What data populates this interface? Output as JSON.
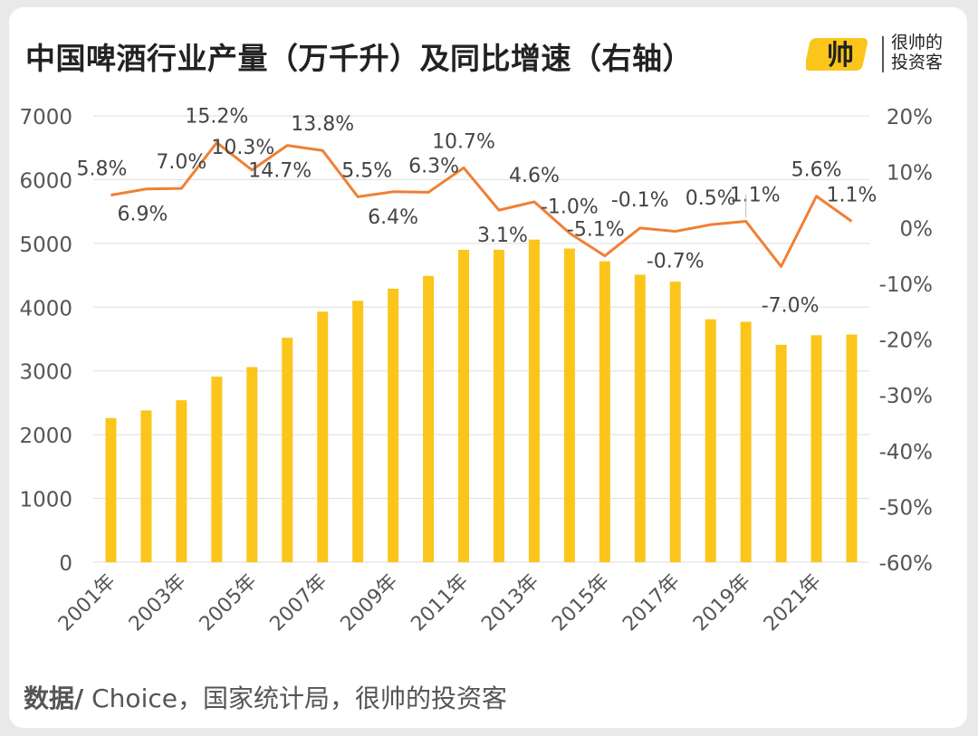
{
  "title": "中国啤酒行业产量（万千升）及同比增速（右轴）",
  "logo": {
    "mark": "帅",
    "line1": "很帅的",
    "line2": "投资客"
  },
  "source": {
    "label": "数据/",
    "text": " Choice，国家统计局，很帅的投资客"
  },
  "colors": {
    "bar": "#FBC51B",
    "line": "#EF8034",
    "grid": "#DDDDDD",
    "text": "#555555",
    "label": "#444444"
  },
  "chart_data": {
    "type": "bar+line",
    "title": "中国啤酒行业产量（万千升）及同比增速（右轴）",
    "categories": [
      "2001年",
      "2002年",
      "2003年",
      "2004年",
      "2005年",
      "2006年",
      "2007年",
      "2008年",
      "2009年",
      "2010年",
      "2011年",
      "2012年",
      "2013年",
      "2014年",
      "2015年",
      "2016年",
      "2017年",
      "2018年",
      "2019年",
      "2020年",
      "2021年",
      "2022年"
    ],
    "x_tick_labels": [
      "2001年",
      "",
      "2003年",
      "",
      "2005年",
      "",
      "2007年",
      "",
      "2009年",
      "",
      "2011年",
      "",
      "2013年",
      "",
      "2015年",
      "",
      "2017年",
      "",
      "2019年",
      "",
      "2021年",
      ""
    ],
    "series": [
      {
        "name": "产量（万千升）",
        "type": "bar",
        "axis": "left",
        "values": [
          2260,
          2380,
          2540,
          2910,
          3060,
          3520,
          3930,
          4100,
          4290,
          4490,
          4900,
          4900,
          5060,
          4920,
          4720,
          4510,
          4400,
          3810,
          3770,
          3410,
          3560,
          3570
        ]
      },
      {
        "name": "同比增速",
        "type": "line",
        "axis": "right",
        "values": [
          5.8,
          6.9,
          7.0,
          15.2,
          10.3,
          14.7,
          13.8,
          5.5,
          6.4,
          6.3,
          10.7,
          3.1,
          4.6,
          -1.0,
          -5.1,
          -0.1,
          -0.7,
          0.5,
          1.1,
          -7.0,
          5.6,
          1.1
        ],
        "labels": [
          "5.8%",
          "6.9%",
          "7.0%",
          "15.2%",
          "10.3%",
          "14.7%",
          "13.8%",
          "5.5%",
          "6.4%",
          "6.3%",
          "10.7%",
          "3.1%",
          "4.6%",
          "-1.0%",
          "-5.1%",
          "-0.1%",
          "-0.7%",
          "0.5%",
          "1.1%",
          "-7.0%",
          "5.6%",
          "1.1%"
        ]
      }
    ],
    "y_left": {
      "min": 0,
      "max": 7000,
      "step": 1000,
      "ticks": [
        "0",
        "1000",
        "2000",
        "3000",
        "4000",
        "5000",
        "6000",
        "7000"
      ]
    },
    "y_right": {
      "min": -60,
      "max": 20,
      "step": 10,
      "ticks": [
        "-60%",
        "-50%",
        "-40%",
        "-30%",
        "-20%",
        "-10%",
        "0%",
        "10%",
        "20%"
      ]
    },
    "grid": true,
    "legend": "none"
  }
}
